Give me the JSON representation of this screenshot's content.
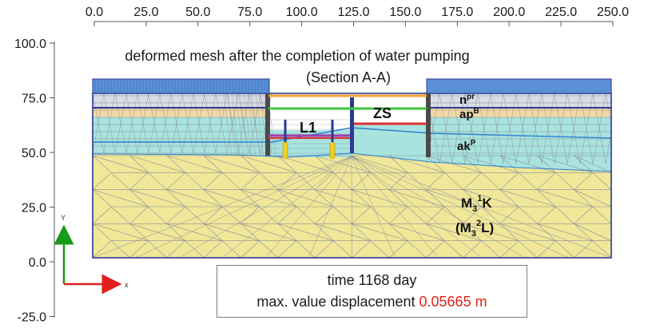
{
  "x_axis": {
    "ticks": [
      "0.0",
      "25.0",
      "50.0",
      "75.0",
      "100.0",
      "125.0",
      "150.0",
      "175.0",
      "200.0",
      "225.0",
      "250.0"
    ]
  },
  "y_axis": {
    "ticks": [
      "100.0",
      "75.0",
      "50.0",
      "25.0",
      "0.0",
      "-25.0"
    ]
  },
  "title": {
    "line1": "deformed mesh after the completion of water pumping",
    "line2": "(Section A-A)"
  },
  "labels": {
    "l1": "L1",
    "zs": "ZS",
    "layer_fill": "n",
    "layer_fill_sup": "pr",
    "layer_alluvial_upper": "ap",
    "layer_alluvial_upper_sup": "B",
    "layer_alluvial_lower": "ak",
    "layer_alluvial_lower_sup": "P",
    "layer_bedrock_1": "M",
    "layer_bedrock_1_sub": "3",
    "layer_bedrock_1_sup": "1",
    "layer_bedrock_1_tail": "K",
    "layer_bedrock_2_open": "(M",
    "layer_bedrock_2_sub": "3",
    "layer_bedrock_2_sup": "2",
    "layer_bedrock_2_tail": "L)"
  },
  "axes_icon": {
    "y_label": "Y",
    "x_label": "x"
  },
  "info": {
    "time_text": "time 1168 day",
    "displacement_prefix": "max. value displacement ",
    "displacement_value": "0.05665 m"
  },
  "colors": {
    "bedrock": "#f0e799",
    "alluvial_lower": "#a8e3de",
    "alluvial_upper": "#f2d9a6",
    "fill": "#d8dde6",
    "mesh_line": "#8a8f9a",
    "building": "#5b8fd6",
    "wall": "#2b3a8f",
    "orange_strut": "#f0a030",
    "green_strut": "#3ec43e",
    "red_strut": "#e03030",
    "purple_strut": "#a040b0",
    "anchor": "#f0d020",
    "displacement_value": "#e2231a"
  }
}
